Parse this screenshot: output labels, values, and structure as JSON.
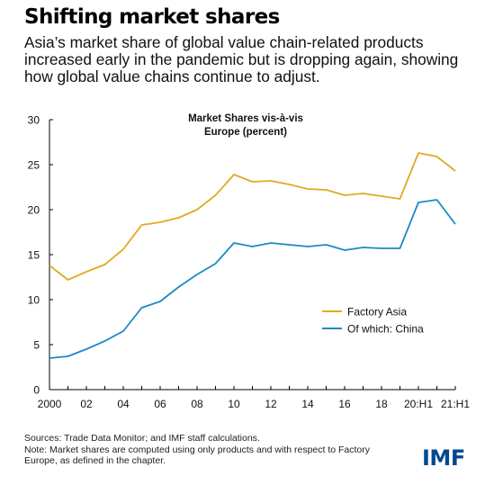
{
  "header": {
    "title": "Shifting market shares",
    "subtitle": "Asia’s market share of global value chain-related products increased early in the pandemic but is dropping again, showing how global value chains continue to adjust."
  },
  "chart_data": {
    "type": "line",
    "title_line1": "Market Shares vis-à-vis",
    "title_line2": "Europe (percent)",
    "x": [
      "2000",
      "2001",
      "2002",
      "2003",
      "2004",
      "2005",
      "2006",
      "2007",
      "2008",
      "2009",
      "2010",
      "2011",
      "2012",
      "2013",
      "2014",
      "2015",
      "2016",
      "2017",
      "2018",
      "2019",
      "20:H1",
      "20:H2",
      "21:H1"
    ],
    "x_tick_labels": [
      "2000",
      "",
      "02",
      "",
      "04",
      "",
      "06",
      "",
      "08",
      "",
      "10",
      "",
      "12",
      "",
      "14",
      "",
      "16",
      "",
      "18",
      "",
      "20:H1",
      "",
      "21:H1"
    ],
    "ylim": [
      0,
      30
    ],
    "y_ticks": [
      "0",
      "5",
      "10",
      "15",
      "20",
      "25",
      "30"
    ],
    "grid": false,
    "legend_position": "center-right",
    "series": [
      {
        "name": "Factory Asia",
        "color": "#e1aa22",
        "values": [
          13.8,
          12.2,
          13.1,
          13.9,
          15.6,
          18.3,
          18.6,
          19.1,
          20.0,
          21.6,
          23.9,
          23.1,
          23.2,
          22.8,
          22.3,
          22.2,
          21.6,
          21.8,
          21.5,
          21.2,
          26.3,
          25.9,
          24.3
        ]
      },
      {
        "name": "Of which: China",
        "color": "#1a8ac6",
        "values": [
          3.5,
          3.7,
          4.5,
          5.4,
          6.5,
          9.1,
          9.8,
          11.4,
          12.8,
          14.0,
          16.3,
          15.9,
          16.3,
          16.1,
          15.9,
          16.1,
          15.5,
          15.8,
          15.7,
          15.7,
          20.8,
          21.1,
          18.4
        ]
      }
    ]
  },
  "footer": {
    "sources": "Sources: Trade Data Monitor; and IMF staff calculations.",
    "note": "Note: Market shares are computed using only products and with respect to Factory Europe, as defined in the chapter."
  },
  "logo": {
    "text": "IMF",
    "color": "#00498f"
  }
}
